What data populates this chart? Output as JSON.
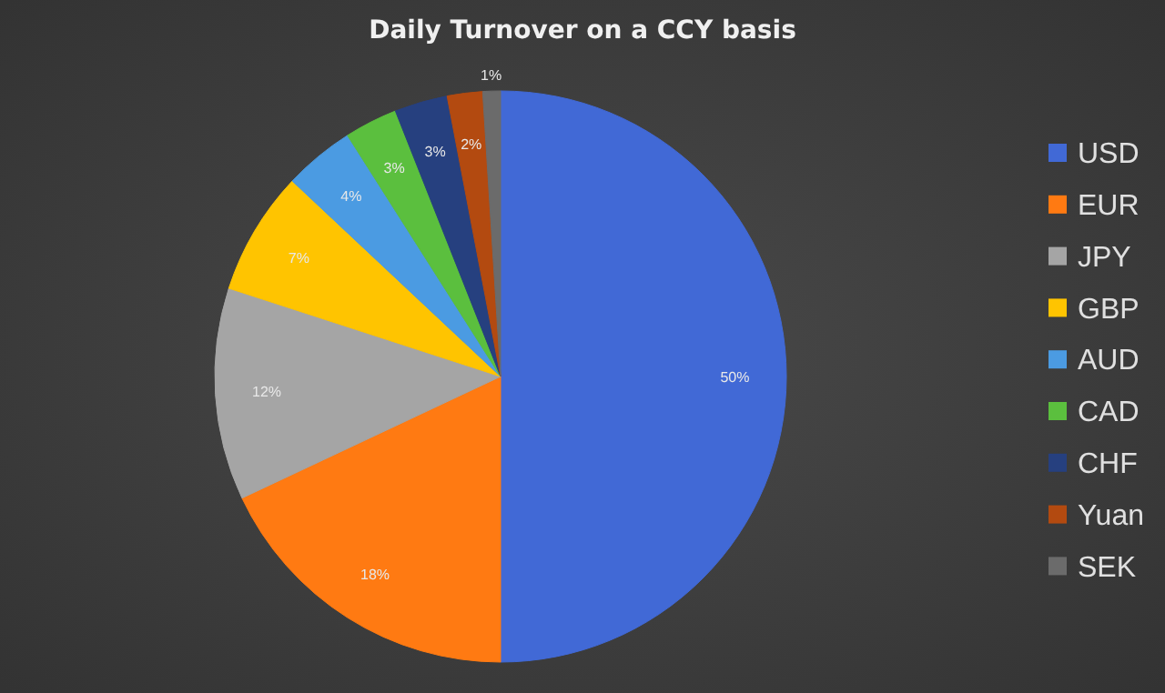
{
  "chart_data": {
    "type": "pie",
    "title": "Daily Turnover on a CCY basis",
    "categories": [
      "USD",
      "EUR",
      "JPY",
      "GBP",
      "AUD",
      "CAD",
      "CHF",
      "Yuan",
      "SEK"
    ],
    "values": [
      50,
      18,
      12,
      7,
      4,
      3,
      3,
      2,
      1
    ],
    "value_labels": [
      "50%",
      "18%",
      "12%",
      "7%",
      "4%",
      "3%",
      "3%",
      "2%",
      "1%"
    ],
    "colors": [
      "#4169d6",
      "#ff7a12",
      "#a5a5a5",
      "#ffc400",
      "#4b9be2",
      "#5bbf3e",
      "#26407f",
      "#b34a10",
      "#6b6b6b"
    ],
    "legend": "right"
  }
}
